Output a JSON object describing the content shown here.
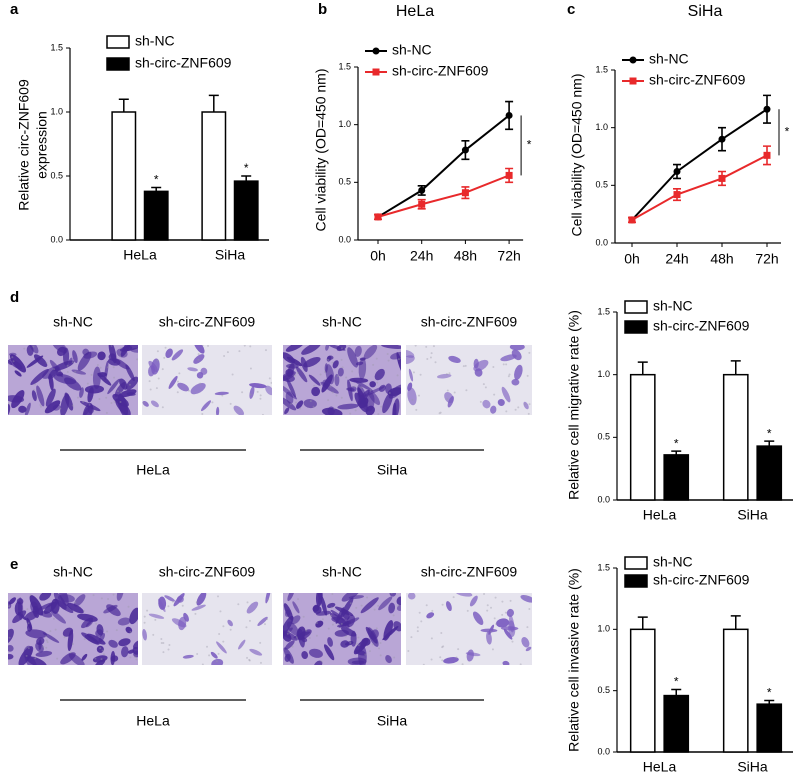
{
  "chart_data": [
    {
      "type": "bar",
      "panel": "a",
      "ylabel": [
        "Relative circ-ZNF609",
        "expression"
      ],
      "categories": [
        "HeLa",
        "SiHa"
      ],
      "series": [
        {
          "name": "sh-NC",
          "color": "#ffffff",
          "values": [
            1.0,
            1.0
          ],
          "errors": [
            0.1,
            0.13
          ]
        },
        {
          "name": "sh-circ-ZNF609",
          "color": "#000000",
          "values": [
            0.38,
            0.46
          ],
          "errors": [
            0.03,
            0.04
          ],
          "significance": [
            "*",
            "*"
          ]
        }
      ],
      "ylim": [
        0,
        1.5
      ],
      "yticks": [
        {
          "value": 0,
          "label": "0.0"
        },
        {
          "value": 0.5,
          "label": "0.5"
        },
        {
          "value": 1,
          "label": "1.0"
        },
        {
          "value": 1.5,
          "label": "1.5"
        }
      ]
    },
    {
      "type": "line",
      "panel": "b",
      "title": "HeLa",
      "ylabel": [
        "Cell viability (OD=450 nm)"
      ],
      "categories": [
        "0h",
        "24h",
        "48h",
        "72h"
      ],
      "series": [
        {
          "name": "sh-NC",
          "color": "#000000",
          "marker": "circle",
          "values": [
            0.2,
            0.43,
            0.78,
            1.08
          ],
          "errors": [
            0.02,
            0.04,
            0.08,
            0.12
          ]
        },
        {
          "name": "sh-circ-ZNF609",
          "color": "#e8292b",
          "marker": "square",
          "values": [
            0.2,
            0.31,
            0.41,
            0.56
          ],
          "errors": [
            0.02,
            0.04,
            0.05,
            0.06
          ]
        }
      ],
      "significance": "*",
      "ylim": [
        0,
        1.5
      ],
      "yticks": [
        {
          "value": 0,
          "label": "0.0"
        },
        {
          "value": 0.5,
          "label": "0.5"
        },
        {
          "value": 1,
          "label": "1.0"
        },
        {
          "value": 1.5,
          "label": "1.5"
        }
      ]
    },
    {
      "type": "line",
      "panel": "c",
      "title": "SiHa",
      "ylabel": [
        "Cell viability (OD=450 nm)"
      ],
      "categories": [
        "0h",
        "24h",
        "48h",
        "72h"
      ],
      "series": [
        {
          "name": "sh-NC",
          "color": "#000000",
          "marker": "circle",
          "values": [
            0.2,
            0.62,
            0.9,
            1.16
          ],
          "errors": [
            0.02,
            0.06,
            0.1,
            0.12
          ]
        },
        {
          "name": "sh-circ-ZNF609",
          "color": "#e8292b",
          "marker": "square",
          "values": [
            0.2,
            0.42,
            0.56,
            0.76
          ],
          "errors": [
            0.02,
            0.05,
            0.06,
            0.08
          ]
        }
      ],
      "significance": "*",
      "ylim": [
        0,
        1.5
      ],
      "yticks": [
        {
          "value": 0,
          "label": "0.0"
        },
        {
          "value": 0.5,
          "label": "0.5"
        },
        {
          "value": 1,
          "label": "1.0"
        },
        {
          "value": 1.5,
          "label": "1.5"
        }
      ]
    },
    {
      "type": "bar",
      "panel": "d",
      "ylabel": [
        "Relative  cell migrative rate (%)"
      ],
      "categories": [
        "HeLa",
        "SiHa"
      ],
      "series": [
        {
          "name": "sh-NC",
          "color": "#ffffff",
          "values": [
            1.0,
            1.0
          ],
          "errors": [
            0.1,
            0.11
          ]
        },
        {
          "name": "sh-circ-ZNF609",
          "color": "#000000",
          "values": [
            0.36,
            0.43
          ],
          "errors": [
            0.03,
            0.04
          ],
          "significance": [
            "*",
            "*"
          ]
        }
      ],
      "ylim": [
        0,
        1.5
      ],
      "yticks": [
        {
          "value": 0,
          "label": "0.0"
        },
        {
          "value": 0.5,
          "label": "0.5"
        },
        {
          "value": 1,
          "label": "1.0"
        },
        {
          "value": 1.5,
          "label": "1.5"
        }
      ]
    },
    {
      "type": "bar",
      "panel": "e",
      "ylabel": [
        "Relative  cell invasive rate (%)"
      ],
      "categories": [
        "HeLa",
        "SiHa"
      ],
      "series": [
        {
          "name": "sh-NC",
          "color": "#ffffff",
          "values": [
            1.0,
            1.0
          ],
          "errors": [
            0.1,
            0.11
          ]
        },
        {
          "name": "sh-circ-ZNF609",
          "color": "#000000",
          "values": [
            0.46,
            0.39
          ],
          "errors": [
            0.05,
            0.03
          ],
          "significance": [
            "*",
            "*"
          ]
        }
      ],
      "ylim": [
        0,
        1.5
      ],
      "yticks": [
        {
          "value": 0,
          "label": "0.0"
        },
        {
          "value": 0.5,
          "label": "0.5"
        },
        {
          "value": 1,
          "label": "1.0"
        },
        {
          "value": 1.5,
          "label": "1.5"
        }
      ]
    }
  ],
  "image_panels": [
    {
      "captions": [
        "sh-NC",
        "sh-circ-ZNF609",
        "sh-NC",
        "sh-circ-ZNF609"
      ],
      "groups": [
        "HeLa",
        "SiHa"
      ]
    },
    {
      "captions": [
        "sh-NC",
        "sh-circ-ZNF609",
        "sh-NC",
        "sh-circ-ZNF609"
      ],
      "groups": [
        "HeLa",
        "SiHa"
      ]
    }
  ]
}
